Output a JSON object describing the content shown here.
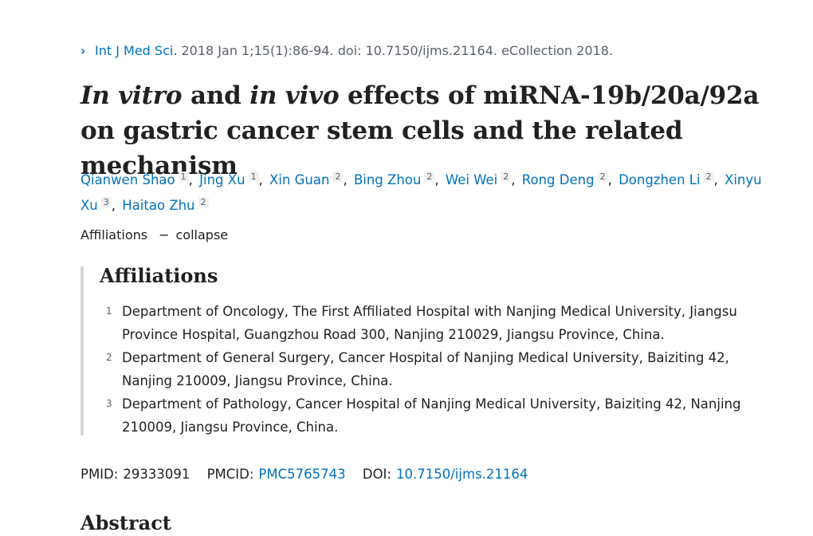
{
  "citation": {
    "journal": "Int J Med Sci.",
    "details": " 2018 Jan 1;15(1):86-94. doi: 10.7150/ijms.21164. eCollection 2018."
  },
  "title": {
    "part1": "In vitro",
    "part2": " and ",
    "part3": "in vivo",
    "part4": " effects of miRNA-19b/20a/92a on gastric cancer stem cells and the related mechanism"
  },
  "authors": [
    {
      "name": "Qianwen Shao",
      "aff": "1"
    },
    {
      "name": "Jing Xu",
      "aff": "1"
    },
    {
      "name": "Xin Guan",
      "aff": "2"
    },
    {
      "name": "Bing Zhou",
      "aff": "2"
    },
    {
      "name": "Wei Wei",
      "aff": "2"
    },
    {
      "name": "Rong Deng",
      "aff": "2"
    },
    {
      "name": "Dongzhen Li",
      "aff": "2"
    },
    {
      "name": "Xinyu Xu",
      "aff": "3"
    },
    {
      "name": "Haitao Zhu",
      "aff": "2"
    }
  ],
  "affiliations_toggle": {
    "label": "Affiliations",
    "dash": "−",
    "action": "collapse"
  },
  "affiliations": {
    "heading": "Affiliations",
    "items": [
      {
        "num": "1",
        "text": "Department of Oncology, The First Affiliated Hospital with Nanjing Medical University, Jiangsu Province Hospital, Guangzhou Road 300, Nanjing 210029, Jiangsu Province, China."
      },
      {
        "num": "2",
        "text": "Department of General Surgery, Cancer Hospital of Nanjing Medical University, Baiziting 42, Nanjing 210009, Jiangsu Province, China."
      },
      {
        "num": "3",
        "text": "Department of Pathology, Cancer Hospital of Nanjing Medical University, Baiziting 42, Nanjing 210009, Jiangsu Province, China."
      }
    ]
  },
  "identifiers": {
    "pmid_label": "PMID:",
    "pmid": "29333091",
    "pmcid_label": "PMCID:",
    "pmcid": "PMC5765743",
    "doi_label": "DOI:",
    "doi": "10.7150/ijms.21164"
  },
  "abstract_heading": "Abstract"
}
